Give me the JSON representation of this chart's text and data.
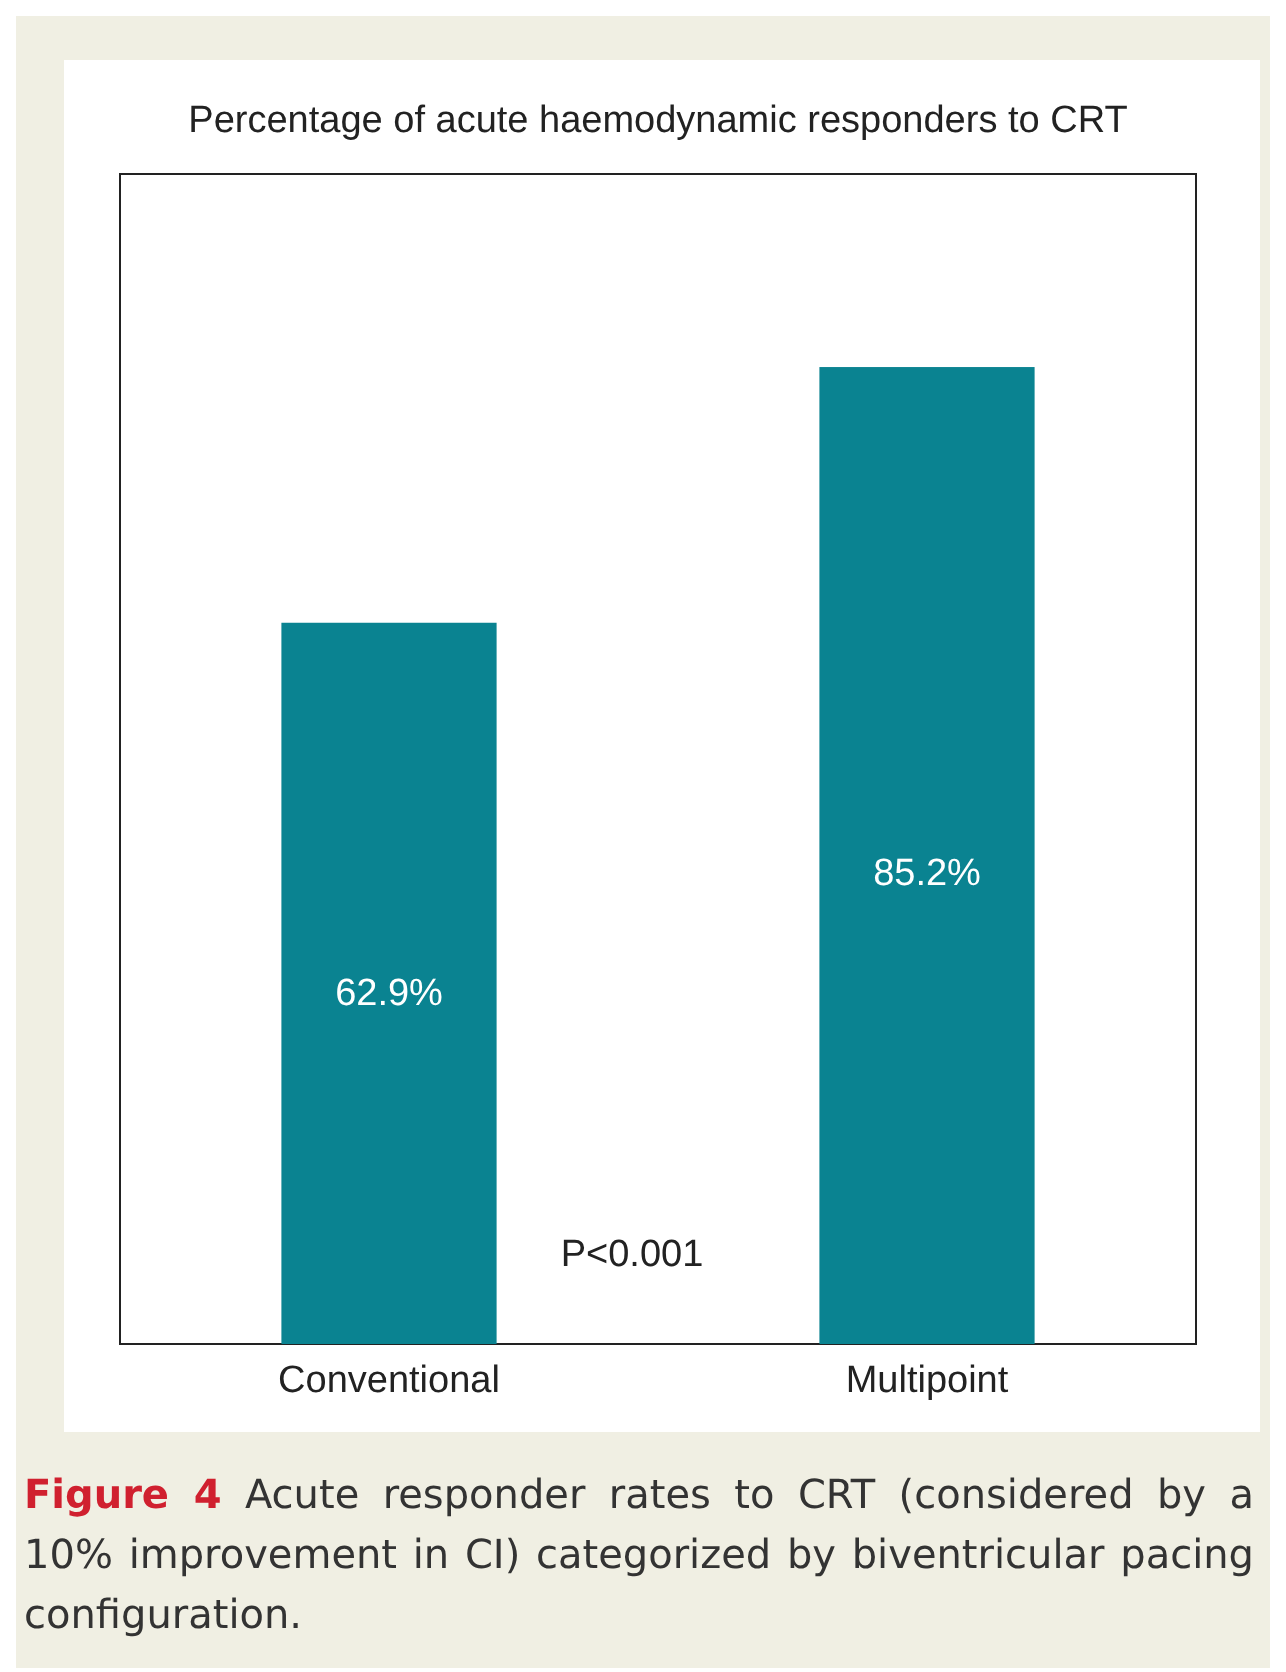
{
  "chart_data": {
    "type": "bar",
    "title": "Percentage of acute haemodynamic responders to CRT",
    "categories": [
      "Conventional",
      "Multipoint"
    ],
    "values": [
      62.9,
      85.2
    ],
    "color": "#0a8391",
    "relative": false,
    "value_labels": [
      "62.9%",
      "85.2%"
    ],
    "annotations": [
      "P<0.001",
      "Figure 4 Acute responder rates to CRT (considered by a 10% improvement in CI) categorized by biventricular pacing configuration."
    ]
  }
}
